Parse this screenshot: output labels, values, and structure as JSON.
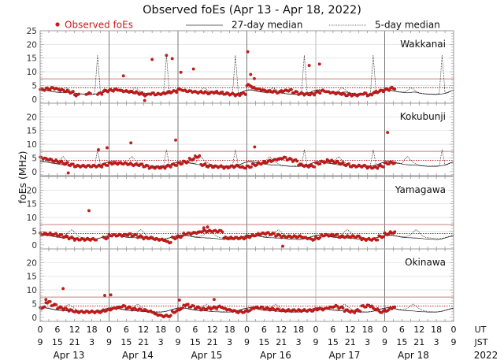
{
  "chart_data": {
    "type": "scatter",
    "title": "Observed foEs (Apr 13 - Apr 18, 2022)",
    "ylabel": "foEs (MHz)",
    "ylim": [
      -1.5,
      25
    ],
    "yticks_first_panel": [
      "0",
      "5",
      "10",
      "15",
      "20",
      "25"
    ],
    "yticks_other_panels": [
      "0",
      "5",
      "10",
      "15",
      "20"
    ],
    "legend": {
      "placement": "top",
      "observed": "Observed foEs",
      "median27": "27-day median",
      "median5": "5-day median"
    },
    "x_axis": {
      "hours_total": 144,
      "ut_label": "UT",
      "jst_label": "JST",
      "ut_ticks": [
        "0",
        "6",
        "12",
        "18",
        "0",
        "6",
        "12",
        "18",
        "0",
        "6",
        "12",
        "18",
        "0",
        "6",
        "12",
        "18",
        "0",
        "6",
        "12",
        "18",
        "0",
        "6",
        "12",
        "18",
        "0"
      ],
      "jst_ticks": [
        "9",
        "15",
        "21",
        "3",
        "9",
        "15",
        "21",
        "3",
        "9",
        "15",
        "21",
        "3",
        "9",
        "15",
        "21",
        "3",
        "9",
        "15",
        "21",
        "3",
        "9",
        "15",
        "21",
        "3",
        "9"
      ],
      "days": [
        "Apr 13",
        "Apr 14",
        "Apr 15",
        "Apr 16",
        "Apr 17",
        "Apr 18"
      ],
      "year": "2022"
    },
    "thresholds": {
      "solid": 7.4,
      "dotted": 4.1
    },
    "colors": {
      "observed": "#d01a1a",
      "threshold_solid": "#c98080",
      "threshold_dotted": "#c02020",
      "median": "#111111",
      "grid": "#e2e2e2"
    },
    "obs_step_hours": 2,
    "stations": [
      {
        "name": "Wakkanai",
        "observed": [
          3.5,
          3.8,
          4,
          3.5,
          3,
          2.5,
          1.5,
          null,
          2,
          null,
          2,
          3,
          3.2,
          3.5,
          3,
          2.8,
          2.5,
          2,
          1.5,
          2,
          1.8,
          2,
          2.5,
          2.8,
          3.5,
          3,
          2.8,
          2.5,
          2.5,
          2.2,
          2.5,
          2.3,
          2,
          1.8,
          1.5,
          2,
          5,
          4,
          3.5,
          3,
          2.8,
          2.5,
          3,
          3.2,
          2.5,
          2,
          1.8,
          1.8,
          2.5,
          3,
          2.5,
          2.2,
          2,
          1.5,
          1.5,
          1.5,
          2,
          1.5,
          2.5,
          3,
          3.5,
          4
        ],
        "outliers": [
          [
            29,
            8.5
          ],
          [
            39,
            14.5
          ],
          [
            44,
            16
          ],
          [
            46,
            14.8
          ],
          [
            49,
            9.8
          ],
          [
            53.4,
            11
          ],
          [
            72.3,
            17.3
          ],
          [
            73.3,
            9
          ],
          [
            74.6,
            7.5
          ],
          [
            93.7,
            12.3
          ],
          [
            97.3,
            12.8
          ],
          [
            36.4,
            -0.5
          ]
        ],
        "median27_daily": [
          3.2,
          3.3,
          3.2,
          3.0,
          2.8,
          2.6,
          2.5,
          2.4,
          2.3,
          2.4,
          2.6,
          2.5,
          2.2,
          2.0,
          1.9,
          1.8,
          1.8,
          1.7,
          1.7,
          1.8,
          1.9,
          2.1,
          2.4,
          2.9
        ],
        "median5_daily": [
          3.3,
          3.5,
          3.4,
          3.1,
          2.9,
          2.7,
          2.6,
          2.6,
          3.2,
          4.2,
          3.6,
          2.8,
          2.3,
          2.1,
          2.0,
          1.9,
          1.8,
          1.8,
          1.8,
          2.0,
          16,
          2.2,
          2.5,
          3.0
        ]
      },
      {
        "name": "Kokubunji",
        "observed": [
          5,
          4.5,
          4,
          3.5,
          3,
          2.5,
          2,
          2,
          2,
          2,
          2,
          2.5,
          3,
          3,
          3,
          2.8,
          2.5,
          2.5,
          2,
          1.5,
          1.5,
          1.5,
          2,
          2.5,
          3,
          3.5,
          4.5,
          5.5,
          2.5,
          2,
          1.8,
          1.8,
          1.5,
          1.8,
          2,
          1.5,
          1.8,
          2.5,
          3,
          3.5,
          4,
          4.5,
          5,
          4.5,
          4,
          2.5,
          2,
          2,
          3,
          3.5,
          4,
          3.5,
          3,
          2.5,
          2,
          2,
          2,
          1.5,
          1.5,
          2,
          3,
          3.2
        ],
        "outliers": [
          [
            9.8,
            -0.5
          ],
          [
            20.3,
            8
          ],
          [
            23.3,
            8.7
          ],
          [
            31.6,
            10.5
          ],
          [
            47.2,
            11.5
          ],
          [
            74.7,
            9
          ],
          [
            121,
            14.3
          ]
        ],
        "median27_daily": [
          3.5,
          3.6,
          3.5,
          3.3,
          3.1,
          3.0,
          2.8,
          2.6,
          2.5,
          2.4,
          2.4,
          2.3,
          2.2,
          2.1,
          2.0,
          1.9,
          1.9,
          1.9,
          1.9,
          2.0,
          2.2,
          2.4,
          2.8,
          3.2
        ],
        "median5_daily": [
          3.6,
          3.8,
          4.0,
          3.8,
          3.4,
          3.1,
          3.0,
          4.5,
          5.5,
          4.2,
          3.4,
          2.8,
          2.4,
          2.2,
          2.1,
          2.0,
          2.0,
          2.1,
          2.1,
          2.2,
          8.0,
          2.3,
          2.6,
          3.2
        ]
      },
      {
        "name": "Yamagawa",
        "observed": [
          4,
          4,
          3.8,
          3.5,
          3,
          2.5,
          2,
          2,
          2,
          2,
          null,
          2.5,
          3.5,
          3.5,
          3.5,
          3.8,
          3.5,
          3,
          2.5,
          2.5,
          2,
          1.8,
          1,
          2.5,
          3,
          4,
          4.2,
          4.5,
          5,
          5,
          5,
          5,
          2.5,
          2.5,
          2.5,
          2.5,
          3,
          3.5,
          4,
          4.2,
          4,
          3.5,
          3,
          3,
          3,
          3,
          2.5,
          2,
          2.5,
          3.5,
          3.5,
          3.5,
          3,
          3,
          3,
          3,
          2,
          2,
          2,
          3,
          4,
          4.5
        ],
        "outliers": [
          [
            17,
            12.5
          ],
          [
            84.5,
            -0.5
          ],
          [
            58.3,
            6.5
          ],
          [
            57,
            6.2
          ]
        ],
        "median27_daily": [
          3.4,
          3.5,
          3.5,
          3.4,
          3.2,
          3.0,
          2.8,
          2.7,
          2.6,
          2.6,
          2.5,
          2.5,
          2.4,
          2.3,
          2.2,
          2.1,
          2.0,
          2.0,
          1.9,
          2.0,
          2.2,
          2.5,
          2.8,
          3.1
        ],
        "median5_daily": [
          3.5,
          3.6,
          3.6,
          3.5,
          3.3,
          3.1,
          3.0,
          3.0,
          3.2,
          3.6,
          4.8,
          5.6,
          4.6,
          3.4,
          2.8,
          2.6,
          2.5,
          2.4,
          2.3,
          2.2,
          2.4,
          2.6,
          2.9,
          3.2
        ]
      },
      {
        "name": "Okinawa",
        "observed": [
          3.5,
          5.5,
          4.5,
          3.5,
          3,
          2.5,
          2,
          2,
          2,
          2,
          2,
          2.5,
          3,
          3.5,
          4,
          3.5,
          3,
          2.8,
          2.5,
          2,
          1,
          0.5,
          0.5,
          2,
          3,
          4.5,
          4,
          3.5,
          3,
          3.2,
          3.5,
          3.8,
          3,
          2.5,
          2,
          2,
          2.5,
          3.5,
          3.5,
          3.2,
          3,
          2.8,
          2.5,
          2.5,
          2.5,
          2.5,
          2.5,
          2.5,
          3,
          3,
          3.5,
          4,
          3.5,
          2.5,
          2,
          2.5,
          4,
          4.2,
          3,
          2,
          2.5,
          3.5
        ],
        "outliers": [
          [
            8,
            10.5
          ],
          [
            22.5,
            8
          ],
          [
            24.6,
            8.2
          ],
          [
            60.6,
            6.5
          ],
          [
            48.5,
            6.3
          ],
          [
            2,
            6.5
          ]
        ],
        "median27_daily": [
          3.3,
          3.5,
          3.4,
          3.2,
          3.0,
          2.8,
          2.6,
          2.5,
          2.4,
          2.4,
          2.3,
          2.2,
          2.1,
          2.0,
          2.0,
          1.9,
          1.9,
          1.9,
          1.9,
          2.0,
          2.2,
          2.5,
          2.8,
          3.1
        ],
        "median5_daily": [
          3.4,
          3.6,
          3.6,
          3.4,
          3.1,
          2.9,
          2.8,
          2.9,
          3.3,
          4.2,
          4.8,
          4.0,
          3.2,
          2.6,
          2.3,
          2.2,
          2.1,
          2.0,
          2.0,
          2.1,
          2.3,
          2.6,
          2.9,
          3.2
        ]
      }
    ]
  }
}
